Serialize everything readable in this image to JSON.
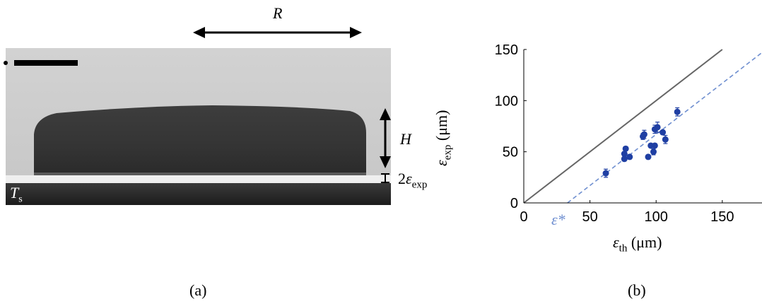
{
  "panel_a": {
    "caption": "(a)",
    "label_R": "R",
    "label_H": "H",
    "label_eps_prefix": "2",
    "label_eps_main": "ε",
    "label_eps_sub": "exp",
    "label_Ts_main": "T",
    "label_Ts_sub": "s"
  },
  "panel_b": {
    "caption": "(b)",
    "eps_star": "ε*"
  },
  "chart_data": {
    "type": "scatter",
    "xlim": [
      0,
      180
    ],
    "ylim": [
      0,
      150
    ],
    "x_ticks": [
      0,
      50,
      100,
      150
    ],
    "y_ticks": [
      0,
      50,
      100,
      150
    ],
    "xlabel_main": "ε",
    "xlabel_sub": "th",
    "xlabel_unit": "(μm)",
    "ylabel_main": "ε",
    "ylabel_sub": "exp",
    "ylabel_unit": "(μm)",
    "grid": false,
    "colors": {
      "points": "#1f3fa3",
      "identity": "#666666",
      "fit": "#6f8fd0"
    },
    "identity_line": {
      "x": [
        0,
        150
      ],
      "y": [
        0,
        150
      ]
    },
    "fit_line": {
      "x": [
        33,
        180
      ],
      "y": [
        0,
        147
      ]
    },
    "points": [
      {
        "x": 62,
        "y": 29,
        "err": 4
      },
      {
        "x": 76,
        "y": 43,
        "err": 2
      },
      {
        "x": 76,
        "y": 48,
        "err": 2
      },
      {
        "x": 77,
        "y": 53,
        "err": 2
      },
      {
        "x": 80,
        "y": 45,
        "err": 2
      },
      {
        "x": 90,
        "y": 65,
        "err": 3
      },
      {
        "x": 91,
        "y": 67,
        "err": 4
      },
      {
        "x": 94,
        "y": 45,
        "err": 2
      },
      {
        "x": 96,
        "y": 56,
        "err": 2
      },
      {
        "x": 98,
        "y": 50,
        "err": 3
      },
      {
        "x": 99,
        "y": 56,
        "err": 2
      },
      {
        "x": 99,
        "y": 72,
        "err": 4
      },
      {
        "x": 101,
        "y": 74,
        "err": 5
      },
      {
        "x": 105,
        "y": 69,
        "err": 2
      },
      {
        "x": 107,
        "y": 62,
        "err": 4
      },
      {
        "x": 116,
        "y": 89,
        "err": 4
      }
    ]
  }
}
